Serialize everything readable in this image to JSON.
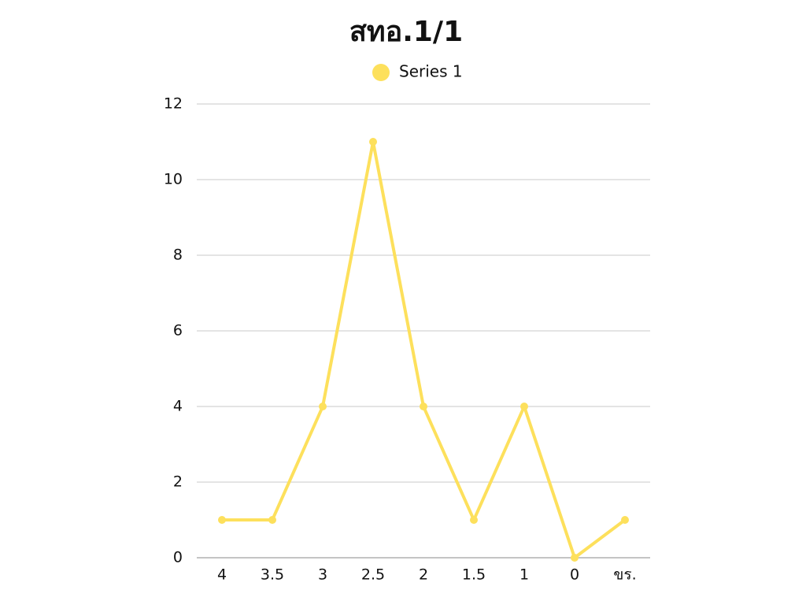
{
  "chart_data": {
    "type": "line",
    "title": "สทอ.1/1",
    "categories": [
      "4",
      "3.5",
      "3",
      "2.5",
      "2",
      "1.5",
      "1",
      "0",
      "ขร."
    ],
    "series": [
      {
        "name": "Series 1",
        "color": "#fde05c",
        "values": [
          1,
          1,
          4,
          11,
          4,
          1,
          4,
          0,
          1
        ]
      }
    ],
    "ylim": [
      0,
      12
    ],
    "yticks": [
      0,
      2,
      4,
      6,
      8,
      10,
      12
    ],
    "grid": true,
    "legend": "top"
  }
}
